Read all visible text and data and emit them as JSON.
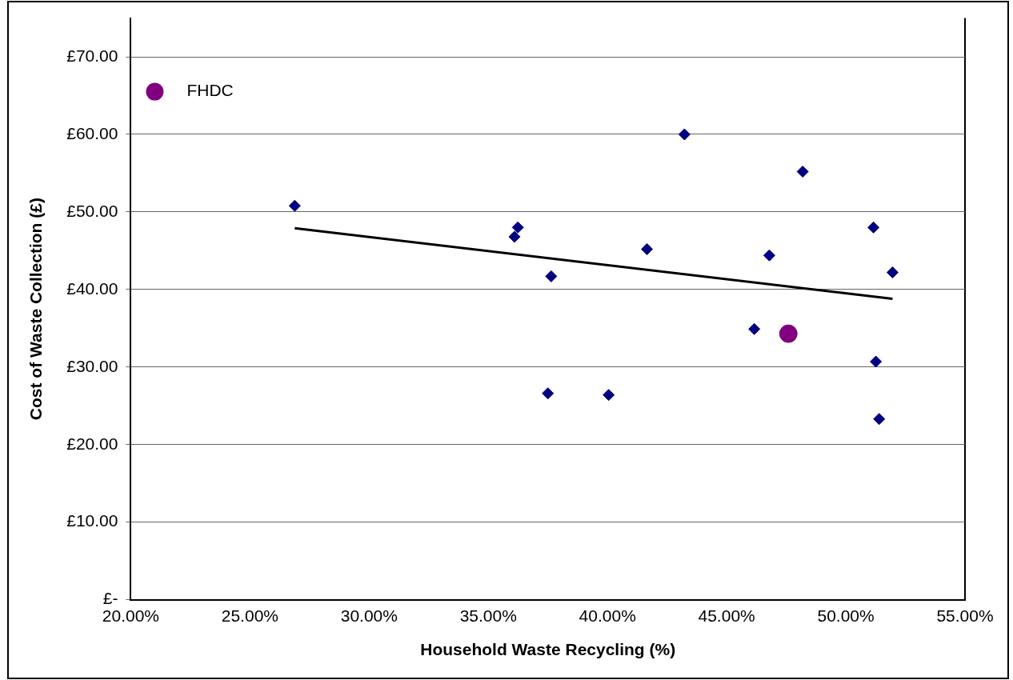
{
  "chart_data": {
    "type": "scatter",
    "xlabel": "Household Waste Recycling (%)",
    "ylabel": "Cost of Waste Collection (£)",
    "xlim": [
      20,
      55
    ],
    "xticks": [
      {
        "value": 20,
        "label": "20.00%"
      },
      {
        "value": 25,
        "label": "25.00%"
      },
      {
        "value": 30,
        "label": "30.00%"
      },
      {
        "value": 35,
        "label": "35.00%"
      },
      {
        "value": 40,
        "label": "40.00%"
      },
      {
        "value": 45,
        "label": "45.00%"
      },
      {
        "value": 50,
        "label": "50.00%"
      },
      {
        "value": 55,
        "label": "55.00%"
      }
    ],
    "ylim": [
      0,
      75
    ],
    "yticks": [
      {
        "value": 0,
        "label": "£-"
      },
      {
        "value": 10,
        "label": "£10.00"
      },
      {
        "value": 20,
        "label": "£20.00"
      },
      {
        "value": 30,
        "label": "£30.00"
      },
      {
        "value": 40,
        "label": "£40.00"
      },
      {
        "value": 50,
        "label": "£50.00"
      },
      {
        "value": 60,
        "label": "£60.00"
      },
      {
        "value": 70,
        "label": "£70.00"
      }
    ],
    "grid": "y",
    "legend": "top left",
    "series": [
      {
        "type": "scatter",
        "marker": "diamond",
        "color": "#000080",
        "x": [
          26.88,
          36.1,
          36.24,
          37.64,
          37.5,
          40.05,
          41.66,
          43.23,
          46.16,
          46.79,
          48.19,
          51.16,
          51.26,
          51.4,
          51.96
        ],
        "values": [
          50.8,
          46.8,
          48.0,
          41.7,
          26.6,
          26.4,
          45.2,
          60.0,
          34.9,
          44.4,
          55.2,
          48.0,
          30.7,
          23.3,
          42.2
        ]
      },
      {
        "type": "scatter",
        "name": "FHDC",
        "marker": "circle",
        "color": "#800080",
        "x": [
          47.59
        ],
        "values": [
          34.3
        ]
      },
      {
        "type": "line",
        "marker": "none",
        "color": "#000000",
        "x": [
          26.88,
          51.96
        ],
        "values": [
          47.9,
          38.8
        ]
      }
    ]
  }
}
